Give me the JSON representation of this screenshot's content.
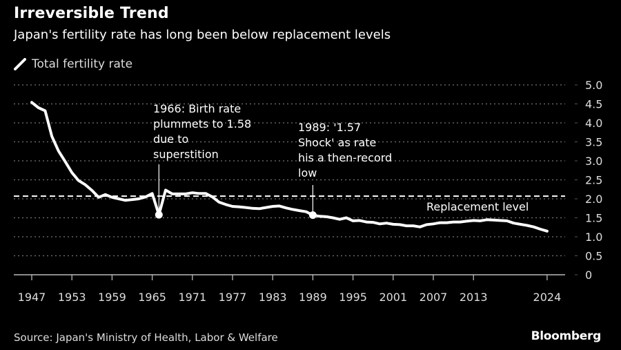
{
  "header": {
    "title": "Irreversible Trend",
    "subtitle": "Japan's fertility rate has long been below replacement levels"
  },
  "legend": {
    "icon": "line-swatch-icon",
    "label": "Total fertility rate",
    "color": "#ffffff"
  },
  "footer": {
    "source": "Source: Japan's Ministry of Health, Labor & Welfare",
    "brand": "Bloomberg"
  },
  "chart_data": {
    "type": "line",
    "title": "Irreversible Trend",
    "subtitle": "Japan's fertility rate has long been below replacement levels",
    "xlabel": "",
    "ylabel": "",
    "xlim": [
      1946,
      2027
    ],
    "ylim": [
      0,
      5.0
    ],
    "grid": true,
    "legend_position": "top-left",
    "x_ticks": [
      1947,
      1953,
      1959,
      1965,
      1971,
      1977,
      1983,
      1989,
      1995,
      2001,
      2007,
      2013,
      2024
    ],
    "x_tick_labels": [
      "1947",
      "1953",
      "1959",
      "1965",
      "1971",
      "1977",
      "1983",
      "1989",
      "1995",
      "2001",
      "2007",
      "2013",
      "2024"
    ],
    "y_ticks": [
      0,
      0.5,
      1.0,
      1.5,
      2.0,
      2.5,
      3.0,
      3.5,
      4.0,
      4.5,
      5.0
    ],
    "y_tick_labels": [
      "0",
      "0.5",
      "1.0",
      "1.5",
      "2.0",
      "2.5",
      "3.0",
      "3.5",
      "4.0",
      "4.5",
      "5.0"
    ],
    "series": [
      {
        "name": "Total fertility rate",
        "color": "#ffffff",
        "x": [
          1947,
          1948,
          1949,
          1950,
          1951,
          1952,
          1953,
          1954,
          1955,
          1956,
          1957,
          1958,
          1959,
          1960,
          1961,
          1962,
          1963,
          1964,
          1965,
          1966,
          1967,
          1968,
          1969,
          1970,
          1971,
          1972,
          1973,
          1974,
          1975,
          1976,
          1977,
          1978,
          1979,
          1980,
          1981,
          1982,
          1983,
          1984,
          1985,
          1986,
          1987,
          1988,
          1989,
          1990,
          1991,
          1992,
          1993,
          1994,
          1995,
          1996,
          1997,
          1998,
          1999,
          2000,
          2001,
          2002,
          2003,
          2004,
          2005,
          2006,
          2007,
          2008,
          2009,
          2010,
          2011,
          2012,
          2013,
          2014,
          2015,
          2016,
          2017,
          2018,
          2019,
          2020,
          2021,
          2022,
          2023,
          2024
        ],
        "values": [
          4.54,
          4.4,
          4.32,
          3.65,
          3.26,
          2.98,
          2.69,
          2.48,
          2.37,
          2.22,
          2.04,
          2.11,
          2.04,
          2.0,
          1.96,
          1.98,
          2.0,
          2.05,
          2.14,
          1.58,
          2.23,
          2.13,
          2.13,
          2.13,
          2.16,
          2.14,
          2.14,
          2.05,
          1.91,
          1.85,
          1.8,
          1.79,
          1.77,
          1.75,
          1.74,
          1.77,
          1.8,
          1.81,
          1.76,
          1.72,
          1.69,
          1.66,
          1.57,
          1.54,
          1.53,
          1.5,
          1.46,
          1.5,
          1.42,
          1.43,
          1.39,
          1.38,
          1.34,
          1.36,
          1.33,
          1.32,
          1.29,
          1.29,
          1.26,
          1.32,
          1.34,
          1.37,
          1.37,
          1.39,
          1.39,
          1.41,
          1.43,
          1.42,
          1.45,
          1.44,
          1.43,
          1.42,
          1.36,
          1.33,
          1.3,
          1.26,
          1.2,
          1.15
        ]
      }
    ],
    "reference_lines": [
      {
        "name": "Replacement level",
        "value": 2.07,
        "style": "dashed",
        "label": "Replacement level"
      }
    ],
    "annotations": [
      {
        "x": 1966,
        "y": 1.58,
        "lines": [
          "1966: Birth rate",
          "plummets to 1.58",
          "due to",
          "superstition"
        ]
      },
      {
        "x": 1989,
        "y": 1.57,
        "lines": [
          "1989: '1.57",
          "Shock' as rate",
          "his a then-record",
          "low"
        ]
      }
    ]
  }
}
